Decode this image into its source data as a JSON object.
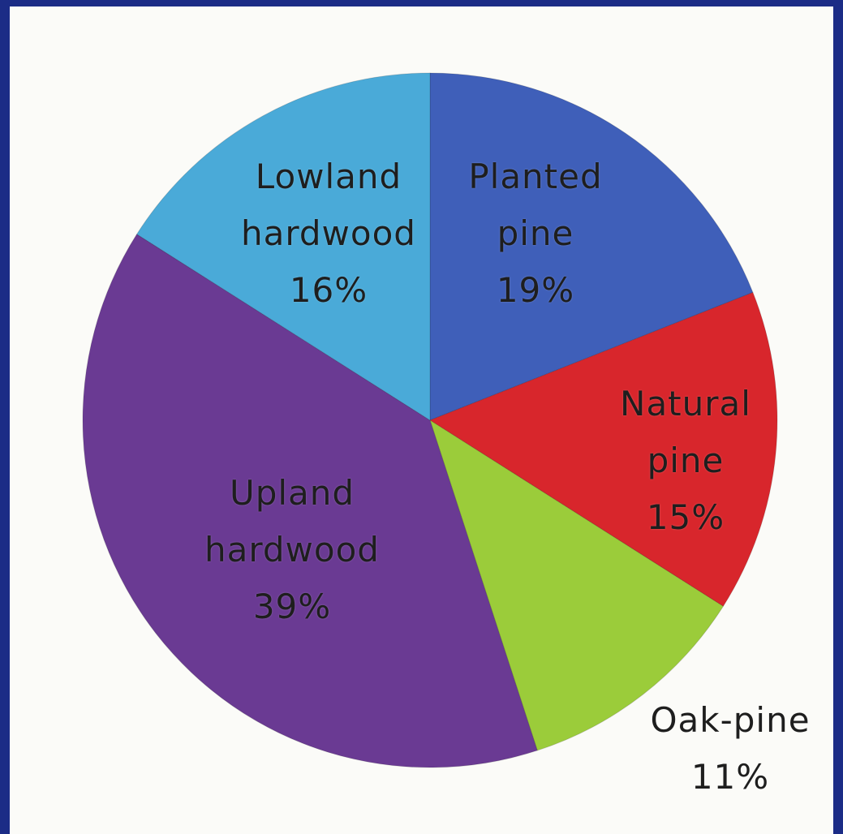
{
  "chart_data": {
    "type": "pie",
    "categories": [
      "Planted pine",
      "Natural pine",
      "Oak-pine",
      "Upland hardwood",
      "Lowland hardwood"
    ],
    "values": [
      19,
      15,
      11,
      39,
      16
    ],
    "value_labels": [
      "19%",
      "15%",
      "11%",
      "39%",
      "16%"
    ],
    "colors": [
      "#3f5fb9",
      "#d8262c",
      "#9bcc3a",
      "#6a3a93",
      "#4aaad8"
    ],
    "start_angle": 0,
    "direction": "clockwise"
  }
}
